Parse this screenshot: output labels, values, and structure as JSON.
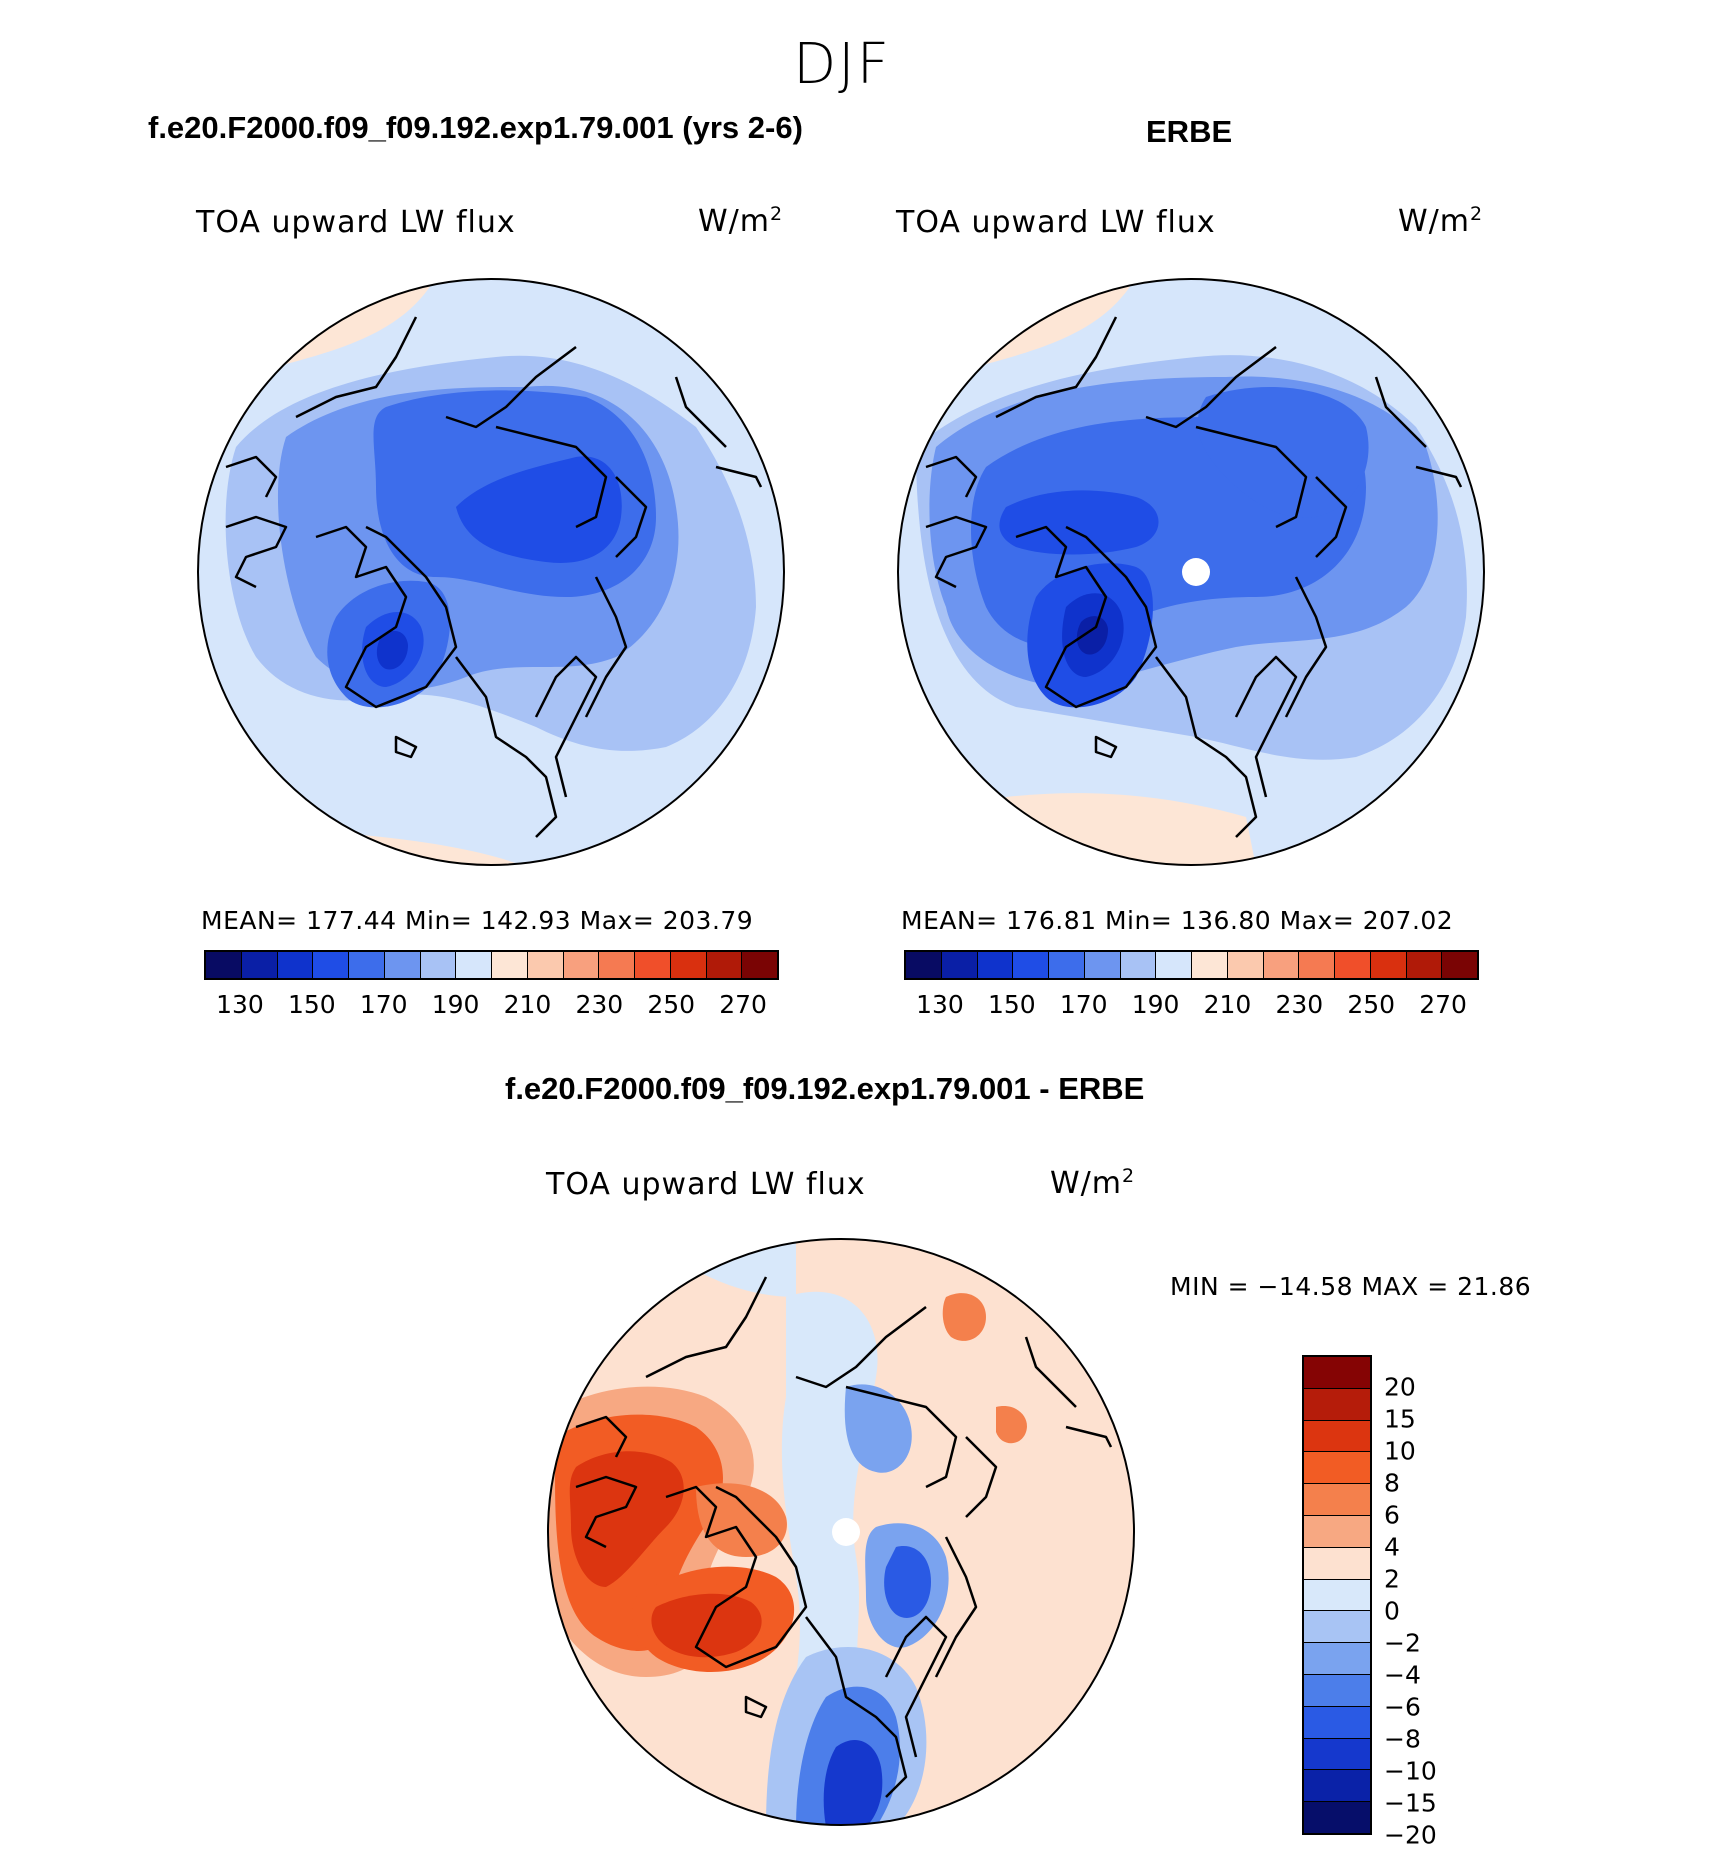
{
  "figure": {
    "season": "DJF"
  },
  "panels": {
    "model": {
      "case_title": "f.e20.F2000.f09_f09.192.exp1.79.001 (yrs 2-6)",
      "variable": "TOA upward LW flux",
      "unit_base": "W/m",
      "unit_exp": "2",
      "stats_text": "MEAN= 177.44   Min= 142.93   Max= 203.79"
    },
    "obs": {
      "case_title": "ERBE",
      "variable": "TOA upward LW flux",
      "unit_base": "W/m",
      "unit_exp": "2",
      "stats_text": "MEAN= 176.81   Min= 136.80   Max= 207.02"
    },
    "diff": {
      "case_title": "f.e20.F2000.f09_f09.192.exp1.79.001 - ERBE",
      "variable": "TOA upward LW flux",
      "unit_base": "W/m",
      "unit_exp": "2",
      "stats_text": "MIN = −14.58  MAX =   21.86"
    }
  },
  "colorbars": {
    "absolute": {
      "colors": [
        "#080b63",
        "#0a1fa6",
        "#0f33cc",
        "#1f4de6",
        "#3d6deb",
        "#6d95f0",
        "#a8c2f5",
        "#d6e6fb",
        "#fde6d6",
        "#fbc9ae",
        "#f8a07e",
        "#f57a52",
        "#f04f2a",
        "#d9300f",
        "#b01a08",
        "#7a0404"
      ],
      "labels": [
        "130",
        "150",
        "170",
        "190",
        "210",
        "230",
        "250",
        "270"
      ]
    },
    "difference": {
      "colors_top_to_bottom": [
        "#850404",
        "#b51c0a",
        "#dc3510",
        "#f25c24",
        "#f4804c",
        "#f7a882",
        "#fde1d0",
        "#d8e8fa",
        "#a8c4f4",
        "#7aa3ef",
        "#4c7eea",
        "#2a5ae4",
        "#1538cd",
        "#0a22a8",
        "#060e6a"
      ],
      "labels_top_to_bottom": [
        "20",
        "15",
        "10",
        "8",
        "6",
        "4",
        "2",
        "0",
        "−2",
        "−4",
        "−6",
        "−8",
        "−10",
        "−15",
        "−20"
      ]
    }
  }
}
